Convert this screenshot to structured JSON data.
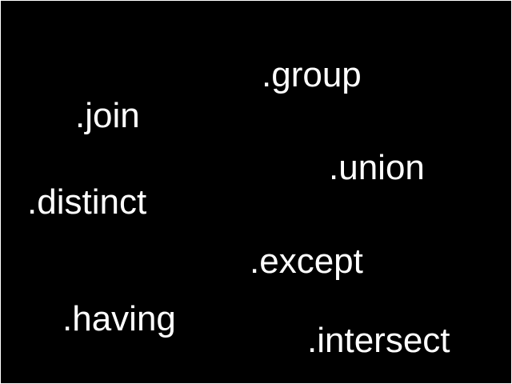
{
  "words": [
    {
      "text": ".group"
    },
    {
      "text": ".join"
    },
    {
      "text": ".union"
    },
    {
      "text": ".distinct"
    },
    {
      "text": ".except"
    },
    {
      "text": ".having"
    },
    {
      "text": ".intersect"
    }
  ],
  "colors": {
    "background": "#000000",
    "text": "#ffffff",
    "border": "#ffffff"
  }
}
